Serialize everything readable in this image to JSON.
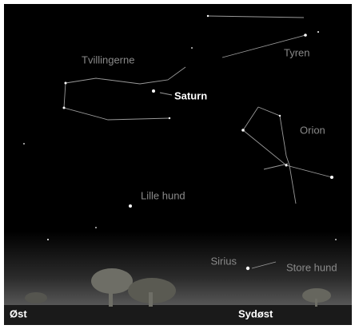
{
  "constellations": [
    "Tvillingerne",
    "Tyren",
    "Orion",
    "Lille hund",
    "Store hund"
  ],
  "planet": "Saturn",
  "star": "Sirius",
  "directions": [
    "Øst",
    "Sydøst"
  ]
}
